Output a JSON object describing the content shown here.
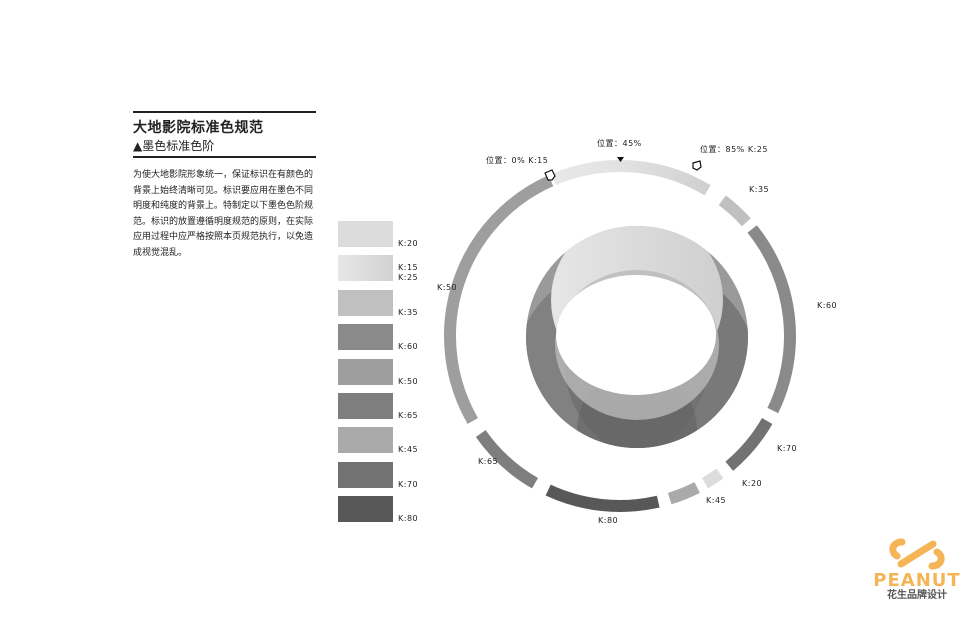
{
  "header": {
    "title": "大地影院标准色规范",
    "subtitle": "▲墨色标准色阶"
  },
  "description": "为使大地影院形象统一，保证标识在有颜色的背景上始终清晰可见。标识要应用在墨色不同明度和纯度的背景上。特制定以下墨色色阶规范。标识的放置遵循明度规范的原则，在实际应用过程中应严格按照本页规范执行，以免造成视觉混乱。",
  "swatches": [
    {
      "label": "K:20",
      "color": "#dcdcdc"
    },
    {
      "label": "K:15\nK:25",
      "color_from": "#e6e6e6",
      "color_to": "#d2d2d2"
    },
    {
      "label": "K:35",
      "color": "#c0c0c0"
    },
    {
      "label": "K:60",
      "color": "#8a8a8a"
    },
    {
      "label": "K:50",
      "color": "#9e9e9e"
    },
    {
      "label": "K:65",
      "color": "#7e7e7e"
    },
    {
      "label": "K:45",
      "color": "#aaaaaa"
    },
    {
      "label": "K:70",
      "color": "#727272"
    },
    {
      "label": "K:80",
      "color": "#585858"
    }
  ],
  "ring": {
    "markers": {
      "start": "位置：0% K:15",
      "mid": "位置：45%",
      "end": "位置：85% K:25"
    },
    "segments": [
      {
        "label": "K:35",
        "color": "#c0c0c0"
      },
      {
        "label": "K:60",
        "color": "#8a8a8a"
      },
      {
        "label": "K:70",
        "color": "#727272"
      },
      {
        "label": "K:20",
        "color": "#dcdcdc"
      },
      {
        "label": "K:45",
        "color": "#aaaaaa"
      },
      {
        "label": "K:80",
        "color": "#585858"
      },
      {
        "label": "K:65",
        "color": "#7e7e7e"
      },
      {
        "label": "K:50",
        "color": "#9e9e9e"
      }
    ]
  },
  "logo": {
    "name": "PEANUT",
    "sub": "花生品牌设计",
    "color": "#f5b556"
  }
}
